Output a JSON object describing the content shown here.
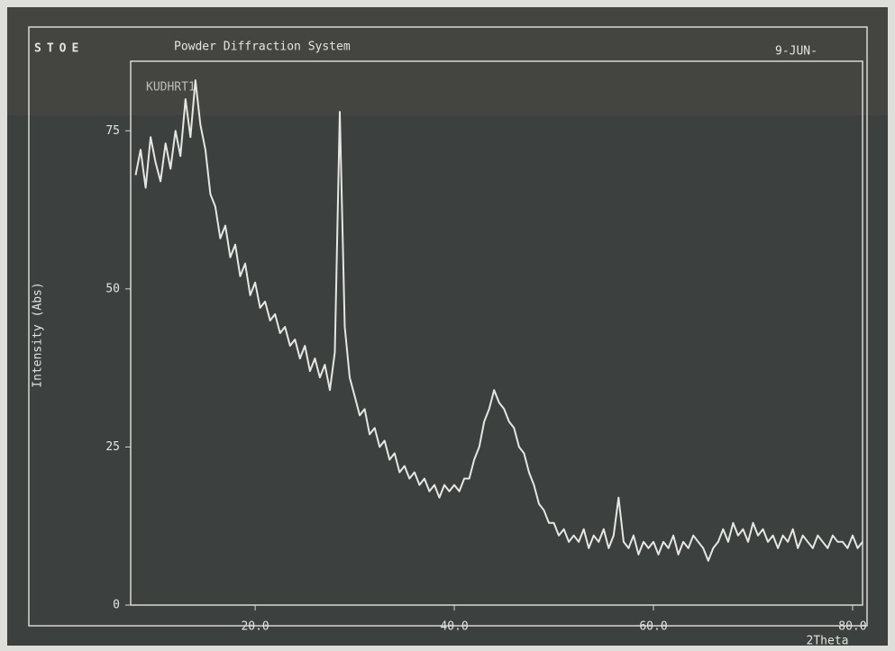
{
  "chart_data": {
    "type": "line",
    "logo": "STOE",
    "title": "Powder Diffraction System",
    "date": "9-JUN-",
    "sample": "KUDHRT1",
    "y_label": "Intensity (Abs)",
    "x_label": "2Theta",
    "color": "#e6e6e2",
    "x": [
      8,
      8.5,
      9,
      9.5,
      10,
      10.5,
      11,
      11.5,
      12,
      12.5,
      13,
      13.5,
      14,
      14.5,
      15,
      15.5,
      16,
      16.5,
      17,
      17.5,
      18,
      18.5,
      19,
      19.5,
      20,
      20.5,
      21,
      21.5,
      22,
      22.5,
      23,
      23.5,
      24,
      24.5,
      25,
      25.5,
      26,
      26.5,
      27,
      27.5,
      28,
      28.5,
      29,
      29.5,
      30,
      30.5,
      31,
      31.5,
      32,
      32.5,
      33,
      33.5,
      34,
      34.5,
      35,
      35.5,
      36,
      36.5,
      37,
      37.5,
      38,
      38.5,
      39,
      39.5,
      40,
      40.5,
      41,
      41.5,
      42,
      42.5,
      43,
      43.5,
      44,
      44.5,
      45,
      45.5,
      46,
      46.5,
      47,
      47.5,
      48,
      48.5,
      49,
      49.5,
      50,
      50.5,
      51,
      51.5,
      52,
      52.5,
      53,
      53.5,
      54,
      54.5,
      55,
      55.5,
      56,
      56.5,
      57,
      57.5,
      58,
      58.5,
      59,
      59.5,
      60,
      60.5,
      61,
      61.5,
      62,
      62.5,
      63,
      63.5,
      64,
      64.5,
      65,
      65.5,
      66,
      66.5,
      67,
      67.5,
      68,
      68.5,
      69,
      69.5,
      70,
      70.5,
      71,
      71.5,
      72,
      72.5,
      73,
      73.5,
      74,
      74.5,
      75,
      75.5,
      76,
      76.5,
      77,
      77.5,
      78,
      78.5,
      79,
      79.5,
      80,
      80.5,
      81
    ],
    "values": [
      68,
      72,
      66,
      74,
      70,
      67,
      73,
      69,
      75,
      71,
      80,
      74,
      83,
      76,
      72,
      65,
      63,
      58,
      60,
      55,
      57,
      52,
      54,
      49,
      51,
      47,
      48,
      45,
      46,
      43,
      44,
      41,
      42,
      39,
      41,
      37,
      39,
      36,
      38,
      34,
      40,
      78,
      44,
      36,
      33,
      30,
      31,
      27,
      28,
      25,
      26,
      23,
      24,
      21,
      22,
      20,
      21,
      19,
      20,
      18,
      19,
      17,
      19,
      18,
      19,
      18,
      20,
      20,
      23,
      25,
      29,
      31,
      34,
      32,
      31,
      29,
      28,
      25,
      24,
      21,
      19,
      16,
      15,
      13,
      13,
      11,
      12,
      10,
      11,
      10,
      12,
      9,
      11,
      10,
      12,
      9,
      11,
      17,
      10,
      9,
      11,
      8,
      10,
      9,
      10,
      8,
      10,
      9,
      11,
      8,
      10,
      9,
      11,
      10,
      9,
      7,
      9,
      10,
      12,
      10,
      13,
      11,
      12,
      10,
      13,
      11,
      12,
      10,
      11,
      9,
      11,
      10,
      12,
      9,
      11,
      10,
      9,
      11,
      10,
      9,
      11,
      10,
      10,
      9,
      11,
      9,
      10
    ],
    "xlim": [
      7.5,
      81
    ],
    "ylim": [
      0,
      86
    ],
    "xticks": [
      {
        "value": 20,
        "label": "20.0"
      },
      {
        "value": 40,
        "label": "40.0"
      },
      {
        "value": 60,
        "label": "60.0"
      },
      {
        "value": 80,
        "label": "80.0"
      }
    ],
    "yticks": [
      0,
      25,
      50,
      75
    ]
  }
}
